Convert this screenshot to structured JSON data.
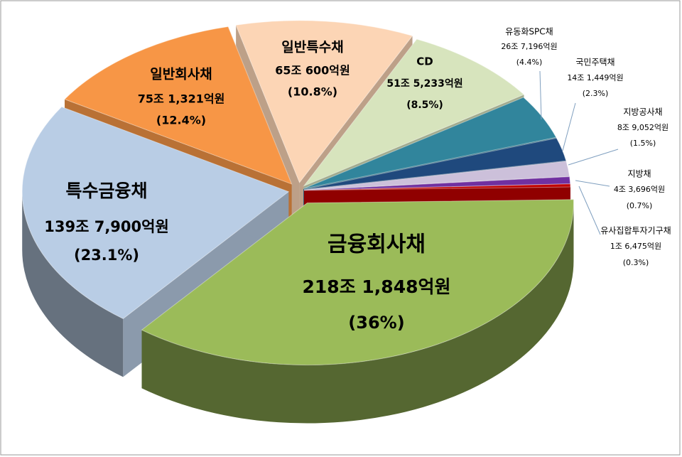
{
  "chart_data": {
    "type": "pie3d",
    "categories": [
      "금융회사채",
      "특수금융채",
      "일반회사채",
      "일반특수채",
      "CD",
      "유동화SPC채",
      "국민주택채",
      "지방공사채",
      "지방채",
      "유사집합투자기구채"
    ],
    "amount_labels": [
      "218조 1,848억원",
      "139조 7,900억원",
      "75조 1,321억원",
      "65조 600억원",
      "51조 5,233억원",
      "26조 7,196억원",
      "14조 1,449억원",
      "8조 9,052억원",
      "4조 3,696억원",
      "1조 6,475억원"
    ],
    "values": [
      36,
      23.1,
      12.4,
      10.8,
      8.5,
      4.4,
      2.3,
      1.5,
      0.7,
      0.3
    ],
    "value_labels": [
      "(36%)",
      "(23.1%)",
      "(12.4%)",
      "(10.8%)",
      "(8.5%)",
      "(4.4%)",
      "(2.3%)",
      "(1.5%)",
      "(0.7%)",
      "(0.3%)"
    ],
    "colors": [
      "#9bbb59",
      "#b9cde5",
      "#f79646",
      "#fcd5b5",
      "#d7e4bd",
      "#31859c",
      "#1f497d",
      "#ccc0da",
      "#7030a0",
      "#c00000"
    ]
  }
}
